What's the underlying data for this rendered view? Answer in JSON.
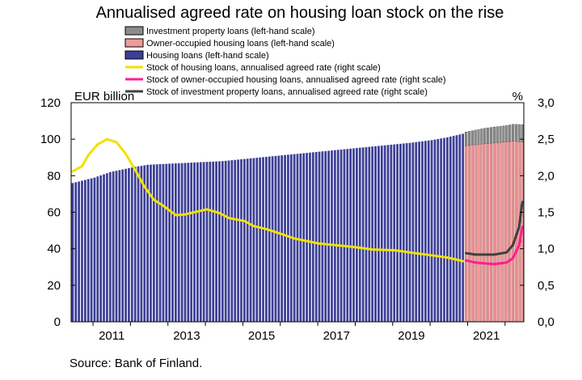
{
  "chart_data": {
    "type": "bar",
    "title": "Annualised agreed rate on housing loan stock on the rise",
    "source": "Source: Bank of Finland.",
    "left_axis": {
      "unit": "EUR billion",
      "ylim": [
        0,
        120
      ],
      "ticks": [
        "0",
        "20",
        "40",
        "60",
        "80",
        "100",
        "120"
      ]
    },
    "right_axis": {
      "unit": "%",
      "ylim": [
        0,
        3
      ],
      "ticks": [
        "0,0",
        "0,5",
        "1,0",
        "1,5",
        "2,0",
        "2,5",
        "3,0"
      ]
    },
    "x_ticks": [
      "2011",
      "2013",
      "2015",
      "2017",
      "2019",
      "2021"
    ],
    "x_tick_years": [
      2011,
      2013,
      2015,
      2017,
      2019,
      2021
    ],
    "x_range": [
      "2010-06",
      "2022-07"
    ],
    "legend_position": "top",
    "legend": [
      {
        "label": "Investment property loans (left-hand scale)",
        "kind": "box",
        "color": "#8c8c8c"
      },
      {
        "label": "Owner-occupied housing loans (left-hand scale)",
        "kind": "box",
        "color": "#f29a9a"
      },
      {
        "label": "Housing loans (left-hand scale)",
        "kind": "box",
        "color": "#3c3f96"
      },
      {
        "label": "Stock of housing loans, annualised agreed rate (right scale)",
        "kind": "line",
        "color": "#f2e100"
      },
      {
        "label": "Stock of owner-occupied housing loans, annualised agreed rate (right scale)",
        "kind": "line",
        "color": "#ff1f8e"
      },
      {
        "label": "Stock of investment property loans, annualised agreed rate (right scale)",
        "kind": "line",
        "color": "#404040"
      }
    ],
    "series": [
      {
        "name": "Housing loans (left-hand scale)",
        "axis": "left",
        "type": "bar",
        "color": "#3c3f96",
        "start": "2010-06",
        "end": "2020-11",
        "points": [
          [
            "2010-06",
            76
          ],
          [
            "2011-01",
            79
          ],
          [
            "2011-06",
            82
          ],
          [
            "2012-01",
            84.5
          ],
          [
            "2012-06",
            86
          ],
          [
            "2013-06",
            87
          ],
          [
            "2014-06",
            88
          ],
          [
            "2015-06",
            90
          ],
          [
            "2016-06",
            92
          ],
          [
            "2017-06",
            94
          ],
          [
            "2018-06",
            96
          ],
          [
            "2019-06",
            98
          ],
          [
            "2020-01",
            99.5
          ],
          [
            "2020-06",
            101
          ],
          [
            "2020-11",
            103
          ]
        ]
      },
      {
        "name": "Owner-occupied housing loans (left-hand scale)",
        "axis": "left",
        "type": "bar-stacked",
        "color": "#f29a9a",
        "start": "2020-12",
        "end": "2022-06",
        "points": [
          [
            "2020-12",
            96.5
          ],
          [
            "2021-03",
            97
          ],
          [
            "2021-06",
            97.5
          ],
          [
            "2021-09",
            98
          ],
          [
            "2022-01",
            98.5
          ],
          [
            "2022-03",
            99
          ],
          [
            "2022-06",
            98.5
          ]
        ]
      },
      {
        "name": "Investment property loans (left-hand scale)",
        "axis": "left",
        "type": "bar-stacked",
        "color": "#8c8c8c",
        "start": "2020-12",
        "end": "2022-06",
        "points": [
          [
            "2020-12",
            7.5
          ],
          [
            "2021-06",
            8.5
          ],
          [
            "2022-01",
            9
          ],
          [
            "2022-06",
            9.5
          ]
        ]
      },
      {
        "name": "Stock of housing loans, annualised agreed rate (right scale)",
        "axis": "right",
        "type": "line",
        "color": "#f2e100",
        "points": [
          [
            "2010-06",
            2.06
          ],
          [
            "2010-09",
            2.13
          ],
          [
            "2010-11",
            2.28
          ],
          [
            "2011-02",
            2.43
          ],
          [
            "2011-05",
            2.5
          ],
          [
            "2011-08",
            2.46
          ],
          [
            "2011-11",
            2.3
          ],
          [
            "2012-02",
            2.08
          ],
          [
            "2012-05",
            1.85
          ],
          [
            "2012-08",
            1.67
          ],
          [
            "2012-11",
            1.59
          ],
          [
            "2013-03",
            1.46
          ],
          [
            "2013-06",
            1.47
          ],
          [
            "2013-09",
            1.5
          ],
          [
            "2014-01",
            1.54
          ],
          [
            "2014-05",
            1.49
          ],
          [
            "2014-08",
            1.42
          ],
          [
            "2015-01",
            1.38
          ],
          [
            "2015-04",
            1.31
          ],
          [
            "2015-08",
            1.27
          ],
          [
            "2016-01",
            1.2
          ],
          [
            "2016-05",
            1.14
          ],
          [
            "2017-01",
            1.07
          ],
          [
            "2017-06",
            1.05
          ],
          [
            "2018-01",
            1.02
          ],
          [
            "2018-06",
            0.99
          ],
          [
            "2019-01",
            0.98
          ],
          [
            "2019-06",
            0.95
          ],
          [
            "2020-01",
            0.91
          ],
          [
            "2020-06",
            0.88
          ],
          [
            "2020-11",
            0.83
          ]
        ]
      },
      {
        "name": "Stock of owner-occupied housing loans, annualised agreed rate (right scale)",
        "axis": "right",
        "type": "line",
        "color": "#ff1f8e",
        "points": [
          [
            "2020-12",
            0.84
          ],
          [
            "2021-03",
            0.81
          ],
          [
            "2021-06",
            0.8
          ],
          [
            "2021-09",
            0.79
          ],
          [
            "2022-01",
            0.81
          ],
          [
            "2022-03",
            0.87
          ],
          [
            "2022-05",
            1.05
          ],
          [
            "2022-06",
            1.3
          ]
        ]
      },
      {
        "name": "Stock of investment property loans, annualised agreed rate (right scale)",
        "axis": "right",
        "type": "line",
        "color": "#404040",
        "points": [
          [
            "2020-12",
            0.94
          ],
          [
            "2021-03",
            0.92
          ],
          [
            "2021-06",
            0.92
          ],
          [
            "2021-09",
            0.92
          ],
          [
            "2022-01",
            0.95
          ],
          [
            "2022-03",
            1.05
          ],
          [
            "2022-05",
            1.3
          ],
          [
            "2022-06",
            1.64
          ]
        ]
      }
    ]
  }
}
